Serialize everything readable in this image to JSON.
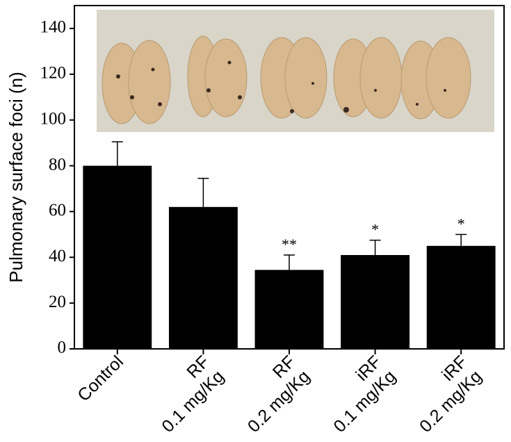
{
  "chart_data": {
    "type": "bar",
    "y_label": "Pulmonary surface foci (n)",
    "categories": [
      [
        "Control"
      ],
      [
        "RF",
        "0.1 mg/Kg"
      ],
      [
        "RF",
        "0.2 mg/Kg"
      ],
      [
        "iRF",
        "0.1 mg/Kg"
      ],
      [
        "iRF",
        "0.2 mg/Kg"
      ]
    ],
    "values": [
      80,
      62,
      34.5,
      41,
      45
    ],
    "errors": [
      10.5,
      12.5,
      6.5,
      6.5,
      5
    ],
    "annotations": [
      null,
      null,
      "**",
      "*",
      "*"
    ],
    "color": "#000000",
    "ylim": [
      0,
      150
    ],
    "yticks": [
      0,
      20,
      40,
      60,
      80,
      100,
      120,
      140
    ]
  }
}
